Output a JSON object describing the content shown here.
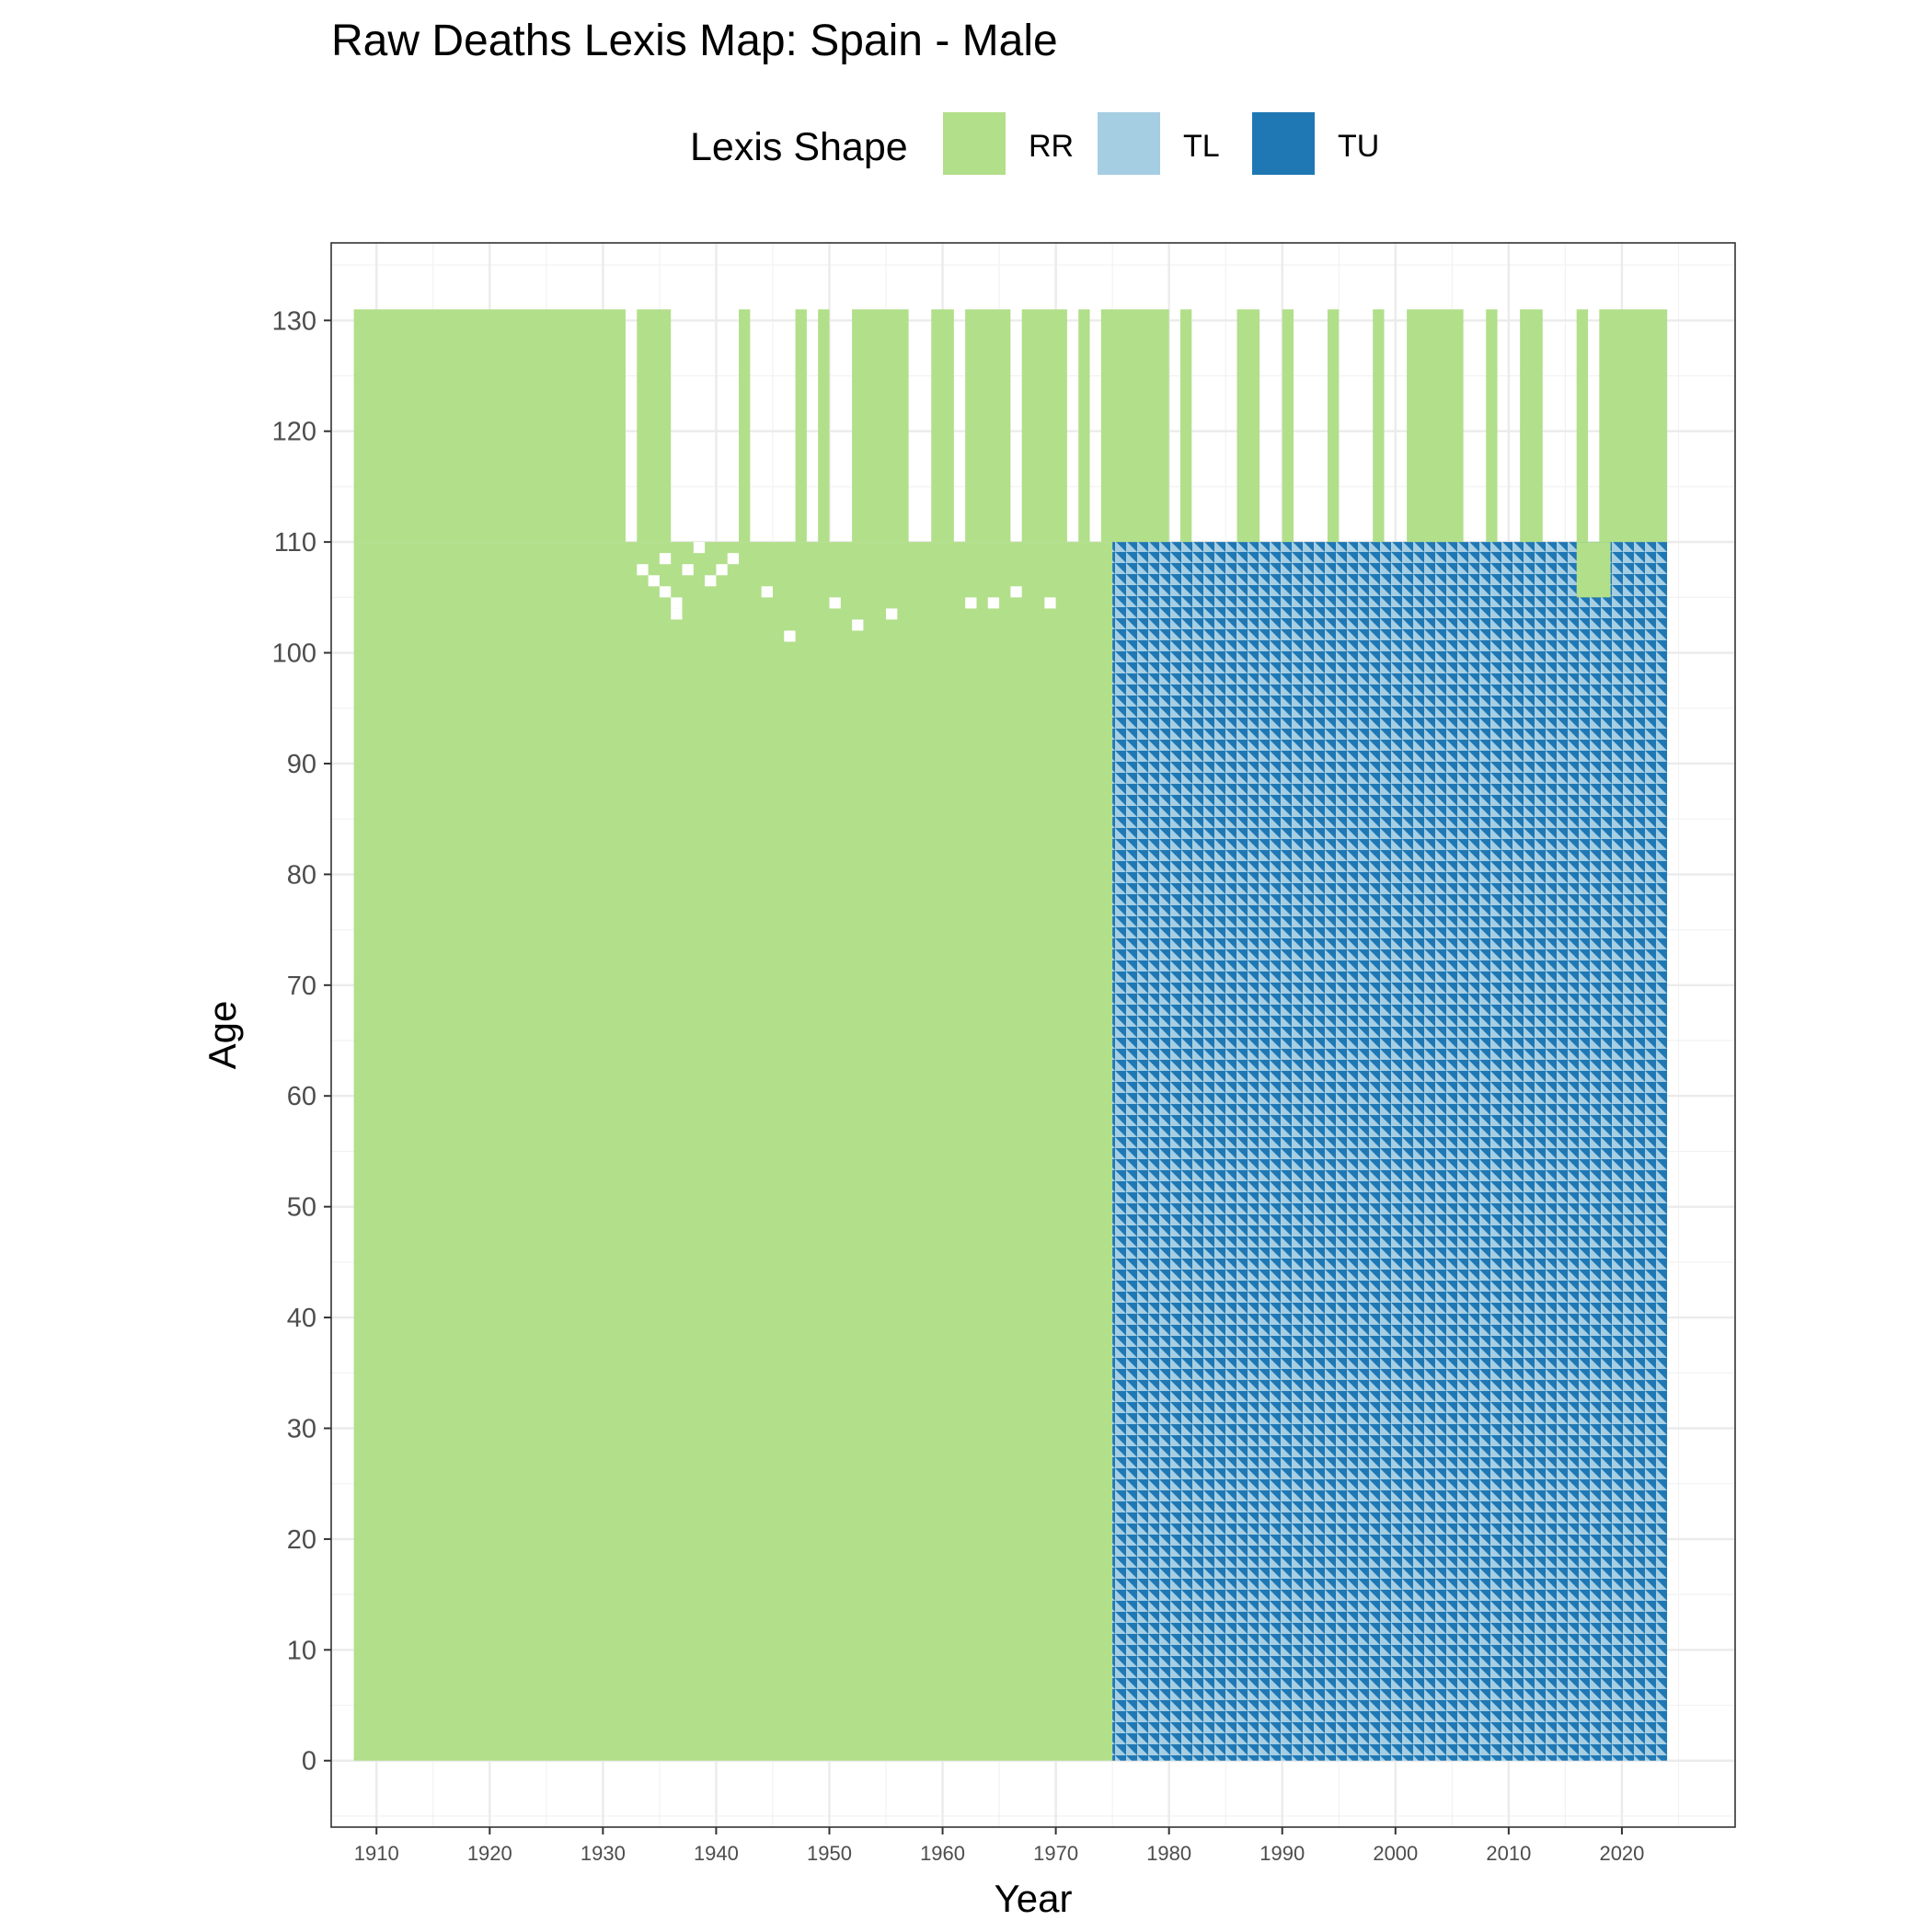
{
  "chart_data": {
    "type": "heatmap",
    "title": "Raw Deaths Lexis Map: Spain - Male",
    "xlabel": "Year",
    "ylabel": "Age",
    "xlim": [
      1906,
      2030
    ],
    "ylim": [
      -6,
      137
    ],
    "x_ticks": [
      "1910",
      "1920",
      "1930",
      "1940",
      "1950",
      "1960",
      "1970",
      "1980",
      "1990",
      "2000",
      "2010",
      "2020"
    ],
    "y_ticks": [
      "0",
      "10",
      "20",
      "30",
      "40",
      "50",
      "60",
      "70",
      "80",
      "90",
      "100",
      "110",
      "120",
      "130"
    ],
    "grid": true,
    "legend": {
      "title": "Lexis Shape",
      "position": "top",
      "entries": [
        {
          "label": "RR",
          "color": "#b2df8a"
        },
        {
          "label": "TL",
          "color": "#a6cee3"
        },
        {
          "label": "TU",
          "color": "#1f78b4"
        }
      ]
    },
    "regions": [
      {
        "shape": "RR",
        "years": [
          1908,
          1975
        ],
        "ages": [
          0,
          110
        ]
      },
      {
        "shape": "TL",
        "years": [
          1975,
          2024
        ],
        "ages": [
          0,
          110
        ]
      },
      {
        "shape": "TU",
        "years": [
          1975,
          2024
        ],
        "ages": [
          0,
          110
        ]
      },
      {
        "shape": "RR",
        "years": [
          2016,
          2019
        ],
        "ages": [
          105,
          110
        ]
      }
    ],
    "open_age_intervals_rr": [
      {
        "years": [
          1908,
          1932
        ],
        "ages": [
          110,
          131
        ]
      },
      {
        "years": [
          1933,
          1936
        ],
        "ages": [
          110,
          131
        ]
      },
      {
        "years": [
          1942,
          1943
        ],
        "ages": [
          110,
          131
        ]
      },
      {
        "years": [
          1947,
          1948
        ],
        "ages": [
          110,
          131
        ]
      },
      {
        "years": [
          1949,
          1950
        ],
        "ages": [
          110,
          131
        ]
      },
      {
        "years": [
          1952,
          1957
        ],
        "ages": [
          110,
          131
        ]
      },
      {
        "years": [
          1959,
          1961
        ],
        "ages": [
          110,
          131
        ]
      },
      {
        "years": [
          1962,
          1966
        ],
        "ages": [
          110,
          131
        ]
      },
      {
        "years": [
          1967,
          1971
        ],
        "ages": [
          110,
          131
        ]
      },
      {
        "years": [
          1972,
          1973
        ],
        "ages": [
          110,
          131
        ]
      },
      {
        "years": [
          1974,
          1980
        ],
        "ages": [
          110,
          131
        ]
      },
      {
        "years": [
          1981,
          1982
        ],
        "ages": [
          110,
          131
        ]
      },
      {
        "years": [
          1986,
          1988
        ],
        "ages": [
          110,
          131
        ]
      },
      {
        "years": [
          1990,
          1991
        ],
        "ages": [
          110,
          131
        ]
      },
      {
        "years": [
          1994,
          1995
        ],
        "ages": [
          110,
          131
        ]
      },
      {
        "years": [
          1998,
          1999
        ],
        "ages": [
          110,
          131
        ]
      },
      {
        "years": [
          2001,
          2006
        ],
        "ages": [
          110,
          131
        ]
      },
      {
        "years": [
          2008,
          2009
        ],
        "ages": [
          110,
          131
        ]
      },
      {
        "years": [
          2011,
          2013
        ],
        "ages": [
          110,
          131
        ]
      },
      {
        "years": [
          2016,
          2017
        ],
        "ages": [
          110,
          131
        ]
      },
      {
        "years": [
          2018,
          2024
        ],
        "ages": [
          110,
          131
        ]
      }
    ],
    "missing_cells": [
      {
        "year": 1933,
        "age": 107
      },
      {
        "year": 1934,
        "age": 106
      },
      {
        "year": 1935,
        "age": 108
      },
      {
        "year": 1935,
        "age": 105
      },
      {
        "year": 1936,
        "age": 104
      },
      {
        "year": 1936,
        "age": 103
      },
      {
        "year": 1937,
        "age": 107
      },
      {
        "year": 1938,
        "age": 109
      },
      {
        "year": 1939,
        "age": 106
      },
      {
        "year": 1940,
        "age": 107
      },
      {
        "year": 1941,
        "age": 108
      },
      {
        "year": 1944,
        "age": 105
      },
      {
        "year": 1946,
        "age": 101
      },
      {
        "year": 1950,
        "age": 104
      },
      {
        "year": 1952,
        "age": 102
      },
      {
        "year": 1955,
        "age": 103
      },
      {
        "year": 1962,
        "age": 104
      },
      {
        "year": 1964,
        "age": 104
      },
      {
        "year": 1966,
        "age": 105
      },
      {
        "year": 1969,
        "age": 104
      }
    ]
  }
}
